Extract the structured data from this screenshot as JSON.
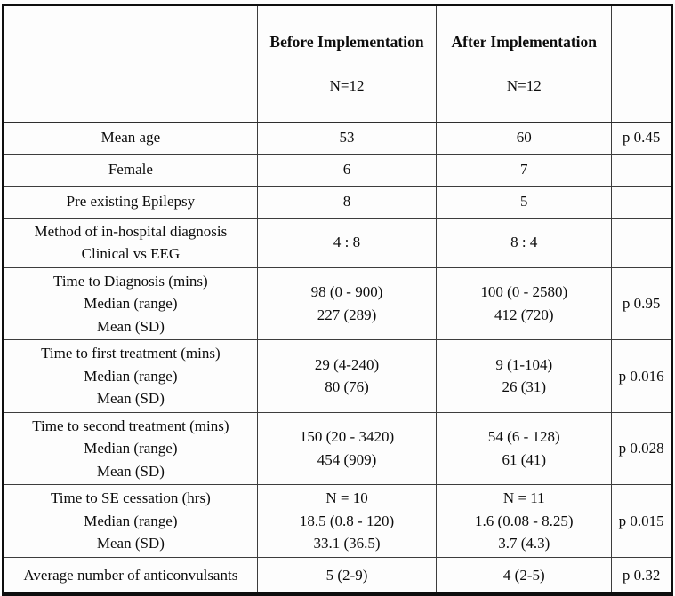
{
  "table": {
    "header": {
      "empty_left": "",
      "before_title": "Before Implementation",
      "before_n": "N=12",
      "after_title": "After Implementation",
      "after_n": "N=12",
      "empty_right": ""
    },
    "rows": [
      {
        "label": "Mean age",
        "before": "53",
        "after": "60",
        "p": "p 0.45"
      },
      {
        "label": "Female",
        "before": "6",
        "after": "7",
        "p": ""
      },
      {
        "label": "Pre existing Epilepsy",
        "before": "8",
        "after": "5",
        "p": ""
      },
      {
        "label": "Method of in-hospital diagnosis\nClinical vs EEG",
        "before": "4 : 8",
        "after": "8 : 4",
        "p": ""
      },
      {
        "label": "Time to Diagnosis (mins)\nMedian (range)\nMean (SD)",
        "before": "98 (0 - 900)\n227 (289)",
        "after": "100 (0 - 2580)\n412 (720)",
        "p": "p 0.95"
      },
      {
        "label": "Time to first treatment (mins)\nMedian (range)\nMean (SD)",
        "before": "29 (4-240)\n80 (76)",
        "after": "9 (1-104)\n26 (31)",
        "p": "p 0.016"
      },
      {
        "label": "Time to second treatment (mins)\nMedian (range)\nMean (SD)",
        "before": "150 (20 - 3420)\n454 (909)",
        "after": "54 (6 - 128)\n61 (41)",
        "p": "p 0.028"
      },
      {
        "label": "Time to SE cessation (hrs)\nMedian (range)\nMean (SD)",
        "before": "N = 10\n18.5 (0.8 - 120)\n33.1 (36.5)",
        "after": "N = 11\n1.6 (0.08 - 8.25)\n3.7 (4.3)",
        "p": "p 0.015"
      },
      {
        "label": "Average number of anticonvulsants",
        "before": "5 (2-9)",
        "after": "4 (2-5)",
        "p": "p 0.32"
      }
    ],
    "colors": {
      "outer_border": "#0e0e0e",
      "inner_border": "#3d3d3d",
      "background": "#fdfdfd",
      "text": "#0c0c0c"
    }
  }
}
